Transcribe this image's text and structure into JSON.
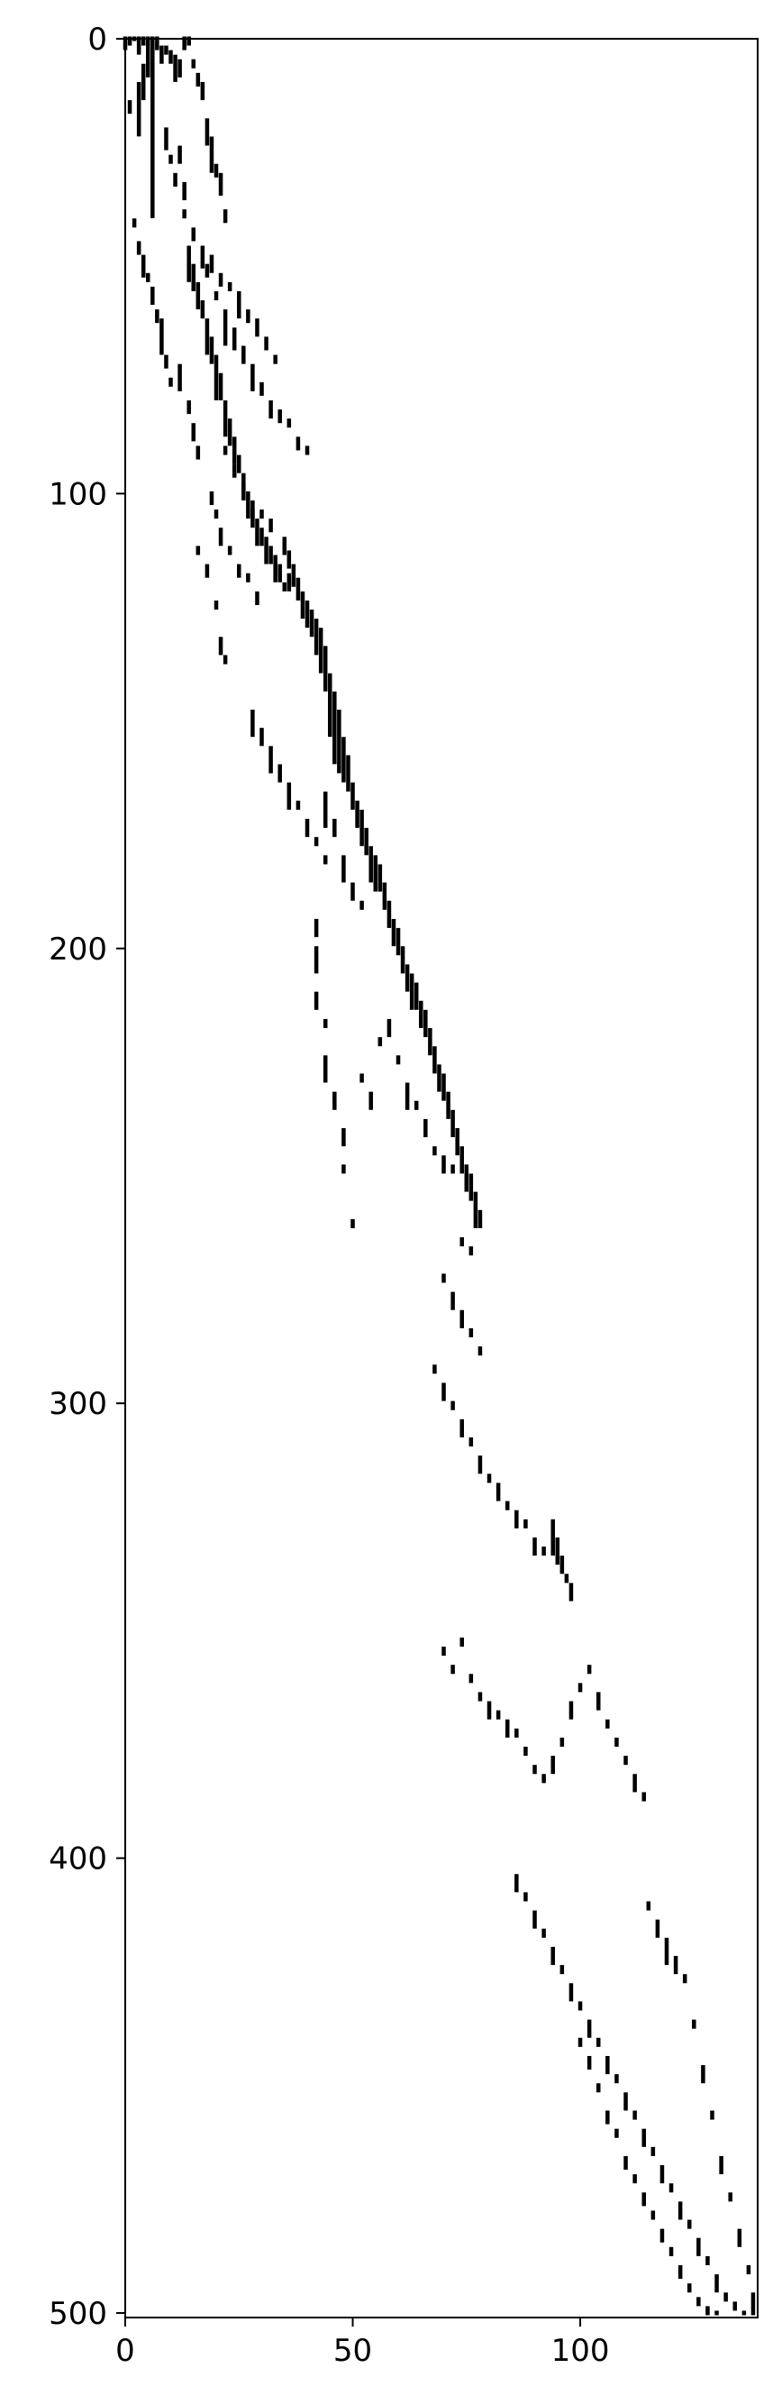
{
  "chart_data": {
    "type": "heatmap",
    "title": "",
    "xlabel": "",
    "ylabel": "",
    "xlim": [
      0,
      139
    ],
    "ylim": [
      501,
      0
    ],
    "x_ticks": [
      "0",
      "50",
      "100"
    ],
    "y_ticks": [
      "0",
      "100",
      "200",
      "300",
      "400",
      "500"
    ],
    "x_tick_values": [
      0,
      50,
      100
    ],
    "y_tick_values": [
      0,
      100,
      200,
      300,
      400,
      500
    ],
    "grid": false,
    "legend": "none",
    "colors": {
      "nonzero": "#000000",
      "background": "#ffffff"
    },
    "segments": [
      [
        0,
        0,
        3
      ],
      [
        1,
        0,
        2
      ],
      [
        2,
        0,
        1
      ],
      [
        3,
        0,
        4
      ],
      [
        4,
        0,
        2
      ],
      [
        5,
        0,
        9
      ],
      [
        6,
        0,
        40
      ],
      [
        7,
        0,
        3
      ],
      [
        8,
        2,
        4
      ],
      [
        9,
        2,
        2
      ],
      [
        10,
        3,
        3
      ],
      [
        11,
        4,
        6
      ],
      [
        12,
        5,
        4
      ],
      [
        13,
        0,
        3
      ],
      [
        14,
        0,
        2
      ],
      [
        15,
        5,
        2
      ],
      [
        16,
        8,
        3
      ],
      [
        17,
        10,
        4
      ],
      [
        18,
        18,
        6
      ],
      [
        19,
        22,
        8
      ],
      [
        20,
        28,
        3
      ],
      [
        21,
        30,
        5
      ],
      [
        22,
        38,
        3
      ],
      [
        4,
        6,
        8
      ],
      [
        3,
        10,
        12
      ],
      [
        1,
        14,
        3
      ],
      [
        9,
        20,
        5
      ],
      [
        10,
        26,
        2
      ],
      [
        12,
        24,
        4
      ],
      [
        11,
        30,
        3
      ],
      [
        13,
        32,
        4
      ],
      [
        2,
        40,
        2
      ],
      [
        3,
        45,
        3
      ],
      [
        4,
        48,
        5
      ],
      [
        5,
        52,
        2
      ],
      [
        6,
        55,
        4
      ],
      [
        7,
        60,
        3
      ],
      [
        8,
        62,
        8
      ],
      [
        9,
        70,
        3
      ],
      [
        10,
        75,
        2
      ],
      [
        12,
        72,
        6
      ],
      [
        14,
        80,
        3
      ],
      [
        15,
        85,
        4
      ],
      [
        16,
        90,
        3
      ],
      [
        13,
        38,
        2
      ],
      [
        15,
        42,
        3
      ],
      [
        17,
        46,
        5
      ],
      [
        19,
        48,
        4
      ],
      [
        21,
        52,
        3
      ],
      [
        23,
        54,
        2
      ],
      [
        25,
        56,
        6
      ],
      [
        27,
        60,
        3
      ],
      [
        29,
        62,
        4
      ],
      [
        31,
        66,
        3
      ],
      [
        33,
        70,
        2
      ],
      [
        18,
        50,
        3
      ],
      [
        20,
        56,
        2
      ],
      [
        22,
        60,
        8
      ],
      [
        24,
        64,
        5
      ],
      [
        26,
        68,
        4
      ],
      [
        28,
        72,
        6
      ],
      [
        30,
        76,
        3
      ],
      [
        32,
        80,
        4
      ],
      [
        34,
        82,
        3
      ],
      [
        36,
        84,
        2
      ],
      [
        38,
        88,
        3
      ],
      [
        40,
        90,
        2
      ],
      [
        14,
        46,
        8
      ],
      [
        15,
        50,
        6
      ],
      [
        16,
        54,
        6
      ],
      [
        17,
        58,
        4
      ],
      [
        18,
        62,
        8
      ],
      [
        19,
        66,
        6
      ],
      [
        20,
        70,
        10
      ],
      [
        21,
        74,
        6
      ],
      [
        22,
        80,
        8
      ],
      [
        23,
        84,
        6
      ],
      [
        24,
        88,
        6
      ],
      [
        25,
        92,
        4
      ],
      [
        26,
        96,
        6
      ],
      [
        27,
        100,
        6
      ],
      [
        28,
        104,
        4
      ],
      [
        29,
        106,
        6
      ],
      [
        30,
        108,
        4
      ],
      [
        31,
        110,
        6
      ],
      [
        32,
        112,
        4
      ],
      [
        33,
        114,
        6
      ],
      [
        34,
        116,
        4
      ],
      [
        35,
        120,
        2
      ],
      [
        36,
        118,
        4
      ],
      [
        22,
        90,
        2
      ],
      [
        24,
        94,
        3
      ],
      [
        26,
        98,
        2
      ],
      [
        28,
        102,
        4
      ],
      [
        30,
        104,
        2
      ],
      [
        32,
        106,
        3
      ],
      [
        19,
        100,
        3
      ],
      [
        20,
        104,
        2
      ],
      [
        21,
        108,
        4
      ],
      [
        23,
        112,
        2
      ],
      [
        25,
        116,
        3
      ],
      [
        27,
        118,
        2
      ],
      [
        29,
        122,
        3
      ],
      [
        16,
        112,
        2
      ],
      [
        18,
        116,
        3
      ],
      [
        20,
        124,
        2
      ],
      [
        21,
        132,
        4
      ],
      [
        22,
        136,
        2
      ],
      [
        35,
        110,
        4
      ],
      [
        36,
        113,
        4
      ],
      [
        37,
        116,
        5
      ],
      [
        38,
        119,
        5
      ],
      [
        39,
        122,
        6
      ],
      [
        40,
        124,
        6
      ],
      [
        41,
        126,
        6
      ],
      [
        42,
        128,
        8
      ],
      [
        43,
        130,
        10
      ],
      [
        44,
        134,
        10
      ],
      [
        45,
        140,
        14
      ],
      [
        46,
        144,
        16
      ],
      [
        47,
        148,
        14
      ],
      [
        48,
        154,
        10
      ],
      [
        49,
        158,
        8
      ],
      [
        50,
        164,
        6
      ],
      [
        51,
        168,
        6
      ],
      [
        52,
        170,
        8
      ],
      [
        53,
        174,
        6
      ],
      [
        54,
        178,
        8
      ],
      [
        55,
        180,
        8
      ],
      [
        56,
        182,
        6
      ],
      [
        57,
        186,
        6
      ],
      [
        58,
        190,
        6
      ],
      [
        59,
        194,
        6
      ],
      [
        60,
        196,
        6
      ],
      [
        61,
        200,
        6
      ],
      [
        62,
        204,
        6
      ],
      [
        63,
        206,
        8
      ],
      [
        64,
        208,
        6
      ],
      [
        65,
        212,
        6
      ],
      [
        66,
        214,
        6
      ],
      [
        67,
        218,
        6
      ],
      [
        68,
        222,
        6
      ],
      [
        69,
        226,
        6
      ],
      [
        70,
        228,
        6
      ],
      [
        71,
        232,
        6
      ],
      [
        72,
        236,
        6
      ],
      [
        73,
        240,
        6
      ],
      [
        74,
        244,
        6
      ],
      [
        75,
        248,
        6
      ],
      [
        76,
        250,
        6
      ],
      [
        77,
        254,
        8
      ],
      [
        78,
        258,
        4
      ],
      [
        28,
        148,
        6
      ],
      [
        30,
        152,
        4
      ],
      [
        32,
        156,
        6
      ],
      [
        34,
        160,
        4
      ],
      [
        36,
        164,
        6
      ],
      [
        38,
        168,
        2
      ],
      [
        40,
        172,
        4
      ],
      [
        42,
        176,
        2
      ],
      [
        44,
        166,
        8
      ],
      [
        46,
        172,
        4
      ],
      [
        48,
        180,
        6
      ],
      [
        50,
        186,
        4
      ],
      [
        52,
        190,
        2
      ],
      [
        44,
        180,
        2
      ],
      [
        42,
        194,
        4
      ],
      [
        42,
        200,
        6
      ],
      [
        42,
        210,
        4
      ],
      [
        44,
        216,
        2
      ],
      [
        44,
        224,
        6
      ],
      [
        46,
        232,
        4
      ],
      [
        48,
        240,
        4
      ],
      [
        48,
        248,
        2
      ],
      [
        50,
        260,
        2
      ],
      [
        52,
        228,
        2
      ],
      [
        54,
        232,
        4
      ],
      [
        56,
        220,
        2
      ],
      [
        58,
        216,
        4
      ],
      [
        60,
        224,
        2
      ],
      [
        62,
        230,
        6
      ],
      [
        64,
        234,
        2
      ],
      [
        66,
        238,
        4
      ],
      [
        68,
        244,
        2
      ],
      [
        70,
        246,
        4
      ],
      [
        72,
        248,
        2
      ],
      [
        74,
        264,
        2
      ],
      [
        76,
        266,
        2
      ],
      [
        70,
        272,
        2
      ],
      [
        72,
        276,
        4
      ],
      [
        74,
        280,
        4
      ],
      [
        76,
        284,
        2
      ],
      [
        78,
        288,
        2
      ],
      [
        68,
        292,
        2
      ],
      [
        70,
        296,
        4
      ],
      [
        72,
        300,
        2
      ],
      [
        74,
        304,
        4
      ],
      [
        76,
        308,
        2
      ],
      [
        78,
        312,
        4
      ],
      [
        80,
        316,
        2
      ],
      [
        82,
        318,
        4
      ],
      [
        84,
        322,
        2
      ],
      [
        86,
        324,
        4
      ],
      [
        88,
        326,
        2
      ],
      [
        90,
        330,
        4
      ],
      [
        92,
        332,
        2
      ],
      [
        94,
        326,
        8
      ],
      [
        95,
        330,
        6
      ],
      [
        96,
        334,
        4
      ],
      [
        97,
        338,
        2
      ],
      [
        98,
        340,
        4
      ],
      [
        70,
        354,
        2
      ],
      [
        72,
        358,
        2
      ],
      [
        74,
        352,
        2
      ],
      [
        76,
        360,
        2
      ],
      [
        78,
        364,
        2
      ],
      [
        80,
        366,
        4
      ],
      [
        82,
        368,
        2
      ],
      [
        84,
        370,
        4
      ],
      [
        86,
        372,
        2
      ],
      [
        88,
        376,
        2
      ],
      [
        90,
        380,
        2
      ],
      [
        92,
        382,
        2
      ],
      [
        94,
        378,
        4
      ],
      [
        96,
        374,
        2
      ],
      [
        98,
        366,
        4
      ],
      [
        100,
        362,
        2
      ],
      [
        102,
        358,
        2
      ],
      [
        104,
        364,
        4
      ],
      [
        106,
        370,
        2
      ],
      [
        108,
        374,
        2
      ],
      [
        110,
        378,
        2
      ],
      [
        112,
        382,
        4
      ],
      [
        114,
        386,
        2
      ],
      [
        86,
        404,
        4
      ],
      [
        88,
        408,
        2
      ],
      [
        90,
        412,
        4
      ],
      [
        92,
        416,
        2
      ],
      [
        94,
        420,
        4
      ],
      [
        96,
        424,
        2
      ],
      [
        98,
        428,
        4
      ],
      [
        100,
        432,
        2
      ],
      [
        102,
        436,
        4
      ],
      [
        104,
        440,
        2
      ],
      [
        106,
        444,
        4
      ],
      [
        108,
        448,
        2
      ],
      [
        110,
        452,
        4
      ],
      [
        112,
        456,
        2
      ],
      [
        114,
        460,
        4
      ],
      [
        116,
        464,
        2
      ],
      [
        118,
        468,
        4
      ],
      [
        120,
        472,
        2
      ],
      [
        122,
        476,
        4
      ],
      [
        124,
        480,
        2
      ],
      [
        126,
        484,
        4
      ],
      [
        128,
        488,
        2
      ],
      [
        130,
        492,
        4
      ],
      [
        132,
        496,
        2
      ],
      [
        134,
        498,
        2
      ],
      [
        136,
        500,
        1
      ],
      [
        115,
        410,
        2
      ],
      [
        117,
        414,
        4
      ],
      [
        119,
        418,
        6
      ],
      [
        121,
        422,
        4
      ],
      [
        123,
        426,
        2
      ],
      [
        125,
        436,
        2
      ],
      [
        127,
        446,
        4
      ],
      [
        129,
        456,
        2
      ],
      [
        131,
        466,
        4
      ],
      [
        133,
        474,
        2
      ],
      [
        135,
        482,
        4
      ],
      [
        137,
        490,
        2
      ],
      [
        138,
        496,
        5
      ],
      [
        100,
        440,
        2
      ],
      [
        102,
        444,
        3
      ],
      [
        104,
        450,
        2
      ],
      [
        106,
        456,
        3
      ],
      [
        108,
        460,
        2
      ],
      [
        110,
        466,
        3
      ],
      [
        112,
        470,
        2
      ],
      [
        114,
        474,
        3
      ],
      [
        116,
        478,
        2
      ],
      [
        118,
        482,
        3
      ],
      [
        120,
        486,
        2
      ],
      [
        122,
        490,
        3
      ],
      [
        124,
        494,
        2
      ],
      [
        126,
        497,
        2
      ],
      [
        128,
        499,
        2
      ],
      [
        130,
        500,
        1
      ]
    ]
  }
}
